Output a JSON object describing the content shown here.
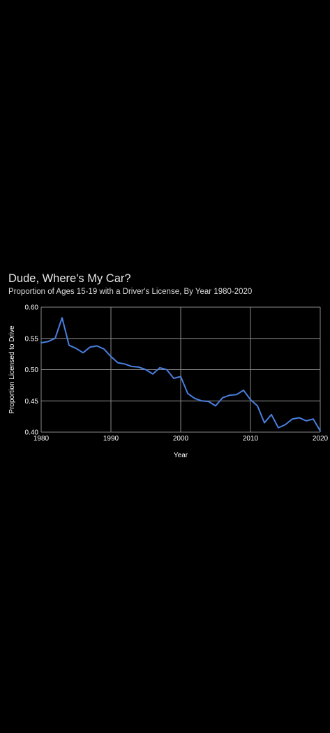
{
  "chart_data": {
    "type": "line",
    "title": "Dude, Where's My Car?",
    "subtitle": "Proportion of Ages 15-19 with a Driver's License, By Year 1980-2020",
    "xlabel": "Year",
    "ylabel": "Proportion Licensed to Drive",
    "xlim": [
      1980,
      2020
    ],
    "ylim": [
      0.4,
      0.6
    ],
    "x_ticks": [
      "1980",
      "1990",
      "2000",
      "2010",
      "2020"
    ],
    "y_ticks": [
      "0.40",
      "0.45",
      "0.50",
      "0.55",
      "0.60"
    ],
    "grid": true,
    "line_color": "#4a7fe0",
    "series": [
      {
        "x": [
          1980,
          1981,
          1982,
          1983,
          1984,
          1985,
          1986,
          1987,
          1988,
          1989,
          1990,
          1991,
          1992,
          1993,
          1994,
          1995,
          1996,
          1997,
          1998,
          1999,
          2000,
          2001,
          2002,
          2003,
          2004,
          2005,
          2006,
          2007,
          2008,
          2009,
          2010,
          2011,
          2012,
          2013,
          2014,
          2015,
          2016,
          2017,
          2018,
          2019,
          2020
        ],
        "values": [
          0.543,
          0.545,
          0.55,
          0.583,
          0.539,
          0.534,
          0.527,
          0.536,
          0.538,
          0.533,
          0.521,
          0.511,
          0.509,
          0.505,
          0.504,
          0.5,
          0.493,
          0.503,
          0.5,
          0.486,
          0.489,
          0.462,
          0.454,
          0.45,
          0.449,
          0.442,
          0.455,
          0.459,
          0.46,
          0.467,
          0.452,
          0.442,
          0.415,
          0.428,
          0.407,
          0.412,
          0.421,
          0.423,
          0.418,
          0.421,
          0.402
        ]
      }
    ]
  }
}
